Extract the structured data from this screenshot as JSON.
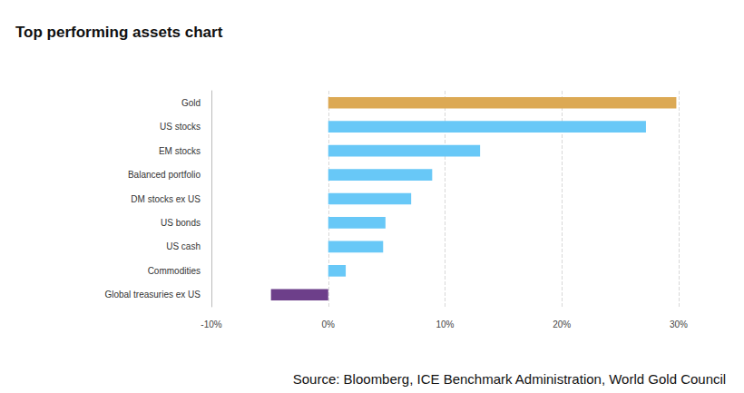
{
  "chart_data": {
    "type": "bar",
    "title": "Top performing assets chart",
    "annotations": [
      "Source: Bloomberg, ICE Benchmark Administration, World Gold Council"
    ],
    "orientation": "horizontal",
    "categories": [
      "Gold",
      "US stocks",
      "EM stocks",
      "Balanced portfolio",
      "DM stocks ex US",
      "US bonds",
      "US cash",
      "Commodities",
      "Global treasuries ex US"
    ],
    "values": [
      29.8,
      27.2,
      13.0,
      8.9,
      7.1,
      4.9,
      4.7,
      1.5,
      -4.9
    ],
    "colors": [
      "#dca954",
      "#68c8f7",
      "#68c8f7",
      "#68c8f7",
      "#68c8f7",
      "#68c8f7",
      "#68c8f7",
      "#68c8f7",
      "#6d3f8a"
    ],
    "xlim": [
      -10,
      30
    ],
    "xticks": [
      {
        "value": -10,
        "label": "-10%"
      },
      {
        "value": 0,
        "label": "0%"
      },
      {
        "value": 10,
        "label": "10%"
      },
      {
        "value": 20,
        "label": "20%"
      },
      {
        "value": 30,
        "label": "30%"
      }
    ],
    "grid": true
  }
}
